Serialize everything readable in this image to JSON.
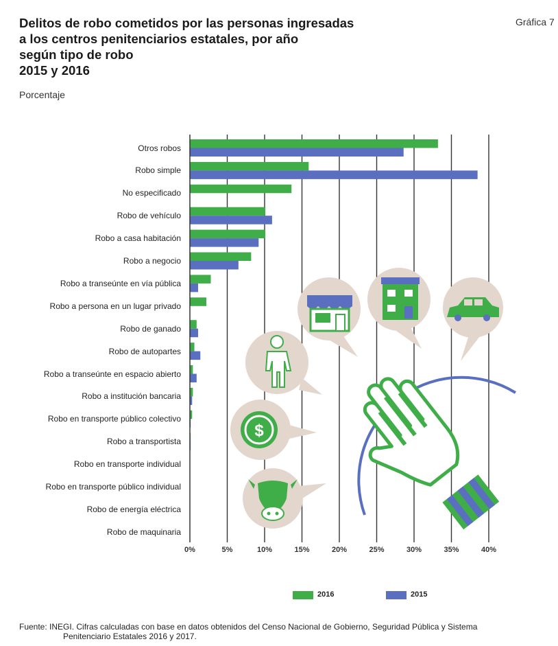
{
  "header": {
    "title_lines": [
      "Delitos de robo cometidos por las personas ingresadas",
      "a los centros penitenciarios estatales, por año",
      "según tipo de robo",
      "2015 y 2016"
    ],
    "unit": "Porcentaje",
    "chart_number": "Gráfica 7"
  },
  "chart_data": {
    "type": "bar",
    "orientation": "horizontal",
    "categories": [
      "Otros robos",
      "Robo simple",
      "No especificado",
      "Robo de vehículo",
      "Robo a casa habitación",
      "Robo a negocio",
      "Robo a transeúnte en vía pública",
      "Robo a persona en un lugar privado",
      "Robo de ganado",
      "Robo de autopartes",
      "Robo a transeúnte en espacio abierto",
      "Robo a institución bancaria",
      "Robo en transporte público colectivo",
      "Robo a transportista",
      "Robo en transporte individual",
      "Robo en transporte público individual",
      "Robo de energía eléctrica",
      "Robo de maquinaria"
    ],
    "series": [
      {
        "name": "2016",
        "color": "#3fae49",
        "values": [
          33.2,
          15.9,
          13.6,
          10.1,
          10.1,
          8.2,
          2.8,
          2.2,
          0.9,
          0.6,
          0.4,
          0.4,
          0.3,
          0.1,
          0.0,
          0.0,
          0.0,
          0.0
        ]
      },
      {
        "name": "2015",
        "color": "#5a6fc0",
        "values": [
          28.6,
          38.5,
          0.0,
          11.0,
          9.2,
          6.5,
          1.1,
          0.0,
          1.1,
          1.4,
          0.9,
          0.3,
          0.1,
          0.1,
          0.0,
          0.0,
          0.0,
          0.0
        ]
      }
    ],
    "x_ticks": [
      "0%",
      "5%",
      "10%",
      "15%",
      "20%",
      "25%",
      "30%",
      "35%",
      "40%"
    ],
    "xlim": [
      0,
      40
    ],
    "grid": "vertical",
    "legend_position": "bottom"
  },
  "footer": {
    "source_lines": [
      "Fuente: INEGI.  Cifras calculadas con base en datos obtenidos del Censo Nacional de Gobierno, Seguridad Pública y Sistema",
      "Penitenciario Estatales 2016 y 2017."
    ]
  }
}
